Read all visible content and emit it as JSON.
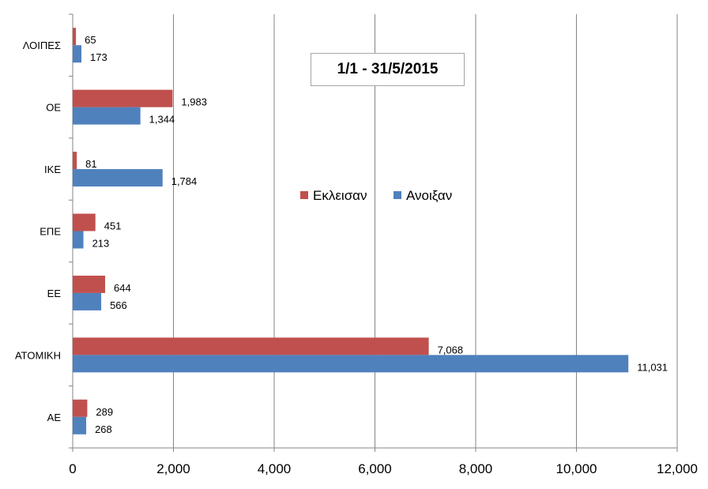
{
  "chart_data": {
    "type": "bar",
    "orientation": "horizontal",
    "title": "1/1 - 31/5/2015",
    "categories": [
      "ΛΟΙΠΕΣ",
      "ΟΕ",
      "ΙΚΕ",
      "ΕΠΕ",
      "ΕΕ",
      "ΑΤΟΜΙΚΗ",
      "ΑΕ"
    ],
    "series": [
      {
        "name": "Εκλεισαν",
        "color": "#C0504D",
        "values": [
          65,
          1983,
          81,
          451,
          644,
          7068,
          289
        ],
        "labels": [
          "65",
          "1,983",
          "81",
          "451",
          "644",
          "7,068",
          "289"
        ]
      },
      {
        "name": "Ανοιξαν",
        "color": "#4F81BD",
        "values": [
          173,
          1344,
          1784,
          213,
          566,
          11031,
          268
        ],
        "labels": [
          "173",
          "1,344",
          "1,784",
          "213",
          "566",
          "11,031",
          "268"
        ]
      }
    ],
    "xlim": [
      0,
      12000
    ],
    "x_ticks": [
      0,
      2000,
      4000,
      6000,
      8000,
      10000,
      12000
    ],
    "x_tick_labels": [
      "0",
      "2,000",
      "4,000",
      "6,000",
      "8,000",
      "10,000",
      "12,000"
    ],
    "grid": "vertical",
    "legend_position": "center-right"
  }
}
